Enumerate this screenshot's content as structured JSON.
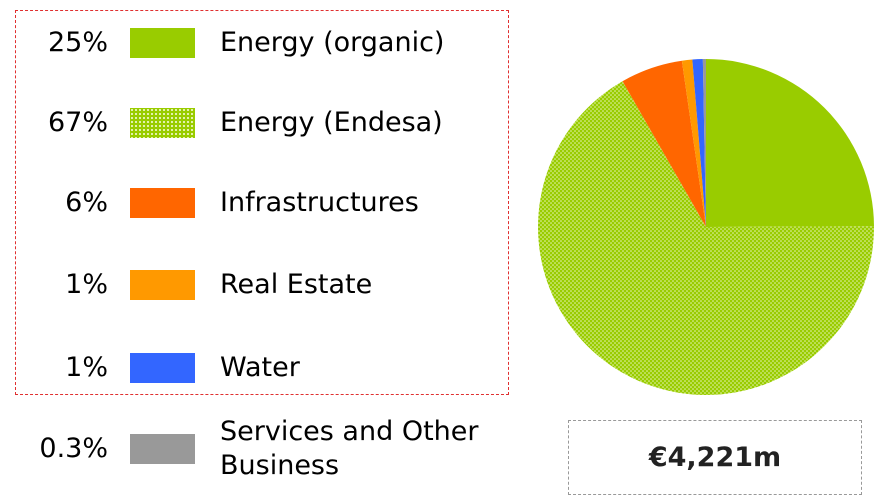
{
  "chart_data": {
    "type": "pie",
    "categories": [
      "Energy (organic)",
      "Energy (Endesa)",
      "Infrastructures",
      "Real Estate",
      "Water",
      "Services and Other Business"
    ],
    "values": [
      25,
      67,
      6,
      1,
      1,
      0.3
    ],
    "value_labels": [
      "25%",
      "67%",
      "6%",
      "1%",
      "1%",
      "0.3%"
    ],
    "colors": [
      "#99cc00",
      "#99cc00",
      "#ff6600",
      "#ff9900",
      "#3366ff",
      "#999999"
    ],
    "pattern": [
      null,
      "dots",
      null,
      null,
      null,
      null
    ],
    "total_label": "€4,221m"
  }
}
